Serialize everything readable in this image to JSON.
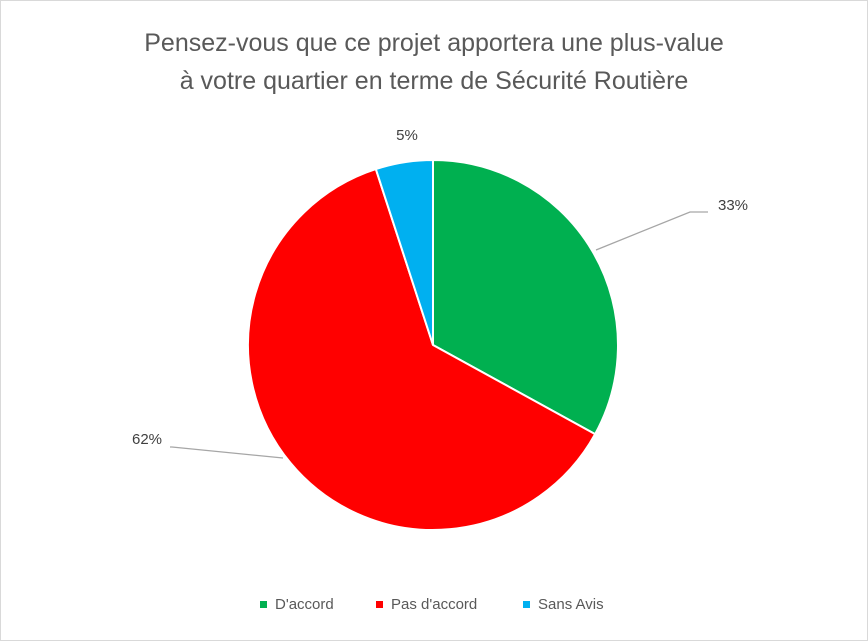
{
  "chart_data": {
    "type": "pie",
    "title": [
      "Pensez-vous que ce projet apportera une plus-value",
      "à votre quartier en terme de Sécurité Routière"
    ],
    "categories": [
      "D'accord",
      "Pas d'accord",
      "Sans Avis"
    ],
    "values": [
      33,
      62,
      5
    ],
    "data_labels": [
      "33%",
      "62%",
      "5%"
    ],
    "colors": [
      "#00B050",
      "#FF0000",
      "#00B0F0"
    ],
    "legend_position": "bottom"
  }
}
